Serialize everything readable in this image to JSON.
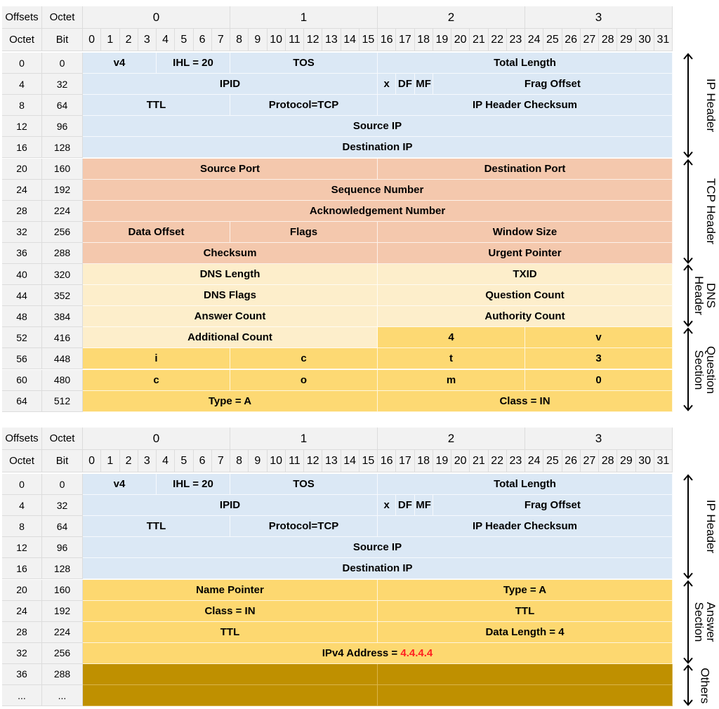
{
  "header": {
    "offsets": "Offsets",
    "octet": "Octet",
    "bit": "Bit",
    "octet_numbers": [
      "0",
      "1",
      "2",
      "3"
    ],
    "bits": [
      "0",
      "1",
      "2",
      "3",
      "4",
      "5",
      "6",
      "7",
      "8",
      "9",
      "10",
      "11",
      "12",
      "13",
      "14",
      "15",
      "16",
      "17",
      "18",
      "19",
      "20",
      "21",
      "22",
      "23",
      "24",
      "25",
      "26",
      "27",
      "28",
      "29",
      "30",
      "31"
    ]
  },
  "query": {
    "rows": [
      {
        "octet": "0",
        "bit": "0"
      },
      {
        "octet": "4",
        "bit": "32"
      },
      {
        "octet": "8",
        "bit": "64"
      },
      {
        "octet": "12",
        "bit": "96"
      },
      {
        "octet": "16",
        "bit": "128"
      },
      {
        "octet": "20",
        "bit": "160"
      },
      {
        "octet": "24",
        "bit": "192"
      },
      {
        "octet": "28",
        "bit": "224"
      },
      {
        "octet": "32",
        "bit": "256"
      },
      {
        "octet": "36",
        "bit": "288"
      },
      {
        "octet": "40",
        "bit": "320"
      },
      {
        "octet": "44",
        "bit": "352"
      },
      {
        "octet": "48",
        "bit": "384"
      },
      {
        "octet": "52",
        "bit": "416"
      },
      {
        "octet": "56",
        "bit": "448"
      },
      {
        "octet": "60",
        "bit": "480"
      },
      {
        "octet": "64",
        "bit": "512"
      }
    ],
    "fields": {
      "v4": "v4",
      "ihl": "IHL = 20",
      "tos": "TOS",
      "total_length": "Total Length",
      "ipid": "IPID",
      "x": "x",
      "df": "DF",
      "mf": "MF",
      "frag_offset": "Frag Offset",
      "ttl": "TTL",
      "protocol": "Protocol=TCP",
      "ip_checksum": "IP Header Checksum",
      "source_ip": "Source IP",
      "destination_ip": "Destination IP",
      "source_port": "Source Port",
      "destination_port": "Destination Port",
      "sequence_number": "Sequence Number",
      "ack_number": "Acknowledgement Number",
      "data_offset": "Data Offset",
      "flags": "Flags",
      "window_size": "Window Size",
      "checksum": "Checksum",
      "urgent_pointer": "Urgent Pointer",
      "dns_length": "DNS Length",
      "txid": "TXID",
      "dns_flags": "DNS Flags",
      "question_count": "Question Count",
      "answer_count": "Answer Count",
      "authority_count": "Authority Count",
      "additional_count": "Additional Count",
      "q1": "4",
      "q2": "v",
      "q3": "i",
      "q4": "c",
      "q5": "t",
      "q6": "3",
      "q7": "c",
      "q8": "o",
      "q9": "m",
      "q10": "0",
      "type": "Type = A",
      "class": "Class = IN"
    },
    "sections": [
      "IP Header",
      "TCP Header",
      "DNS Header",
      "Question Section"
    ]
  },
  "response": {
    "rows": [
      {
        "octet": "0",
        "bit": "0"
      },
      {
        "octet": "4",
        "bit": "32"
      },
      {
        "octet": "8",
        "bit": "64"
      },
      {
        "octet": "12",
        "bit": "96"
      },
      {
        "octet": "16",
        "bit": "128"
      },
      {
        "octet": "20",
        "bit": "160"
      },
      {
        "octet": "24",
        "bit": "192"
      },
      {
        "octet": "28",
        "bit": "224"
      },
      {
        "octet": "32",
        "bit": "256"
      },
      {
        "octet": "36",
        "bit": "288"
      },
      {
        "octet": "...",
        "bit": "..."
      }
    ],
    "fields": {
      "v4": "v4",
      "ihl": "IHL = 20",
      "tos": "TOS",
      "total_length": "Total Length",
      "ipid": "IPID",
      "x": "x",
      "df": "DF",
      "mf": "MF",
      "frag_offset": "Frag Offset",
      "ttl": "TTL",
      "protocol": "Protocol=TCP",
      "ip_checksum": "IP Header Checksum",
      "source_ip": "Source IP",
      "destination_ip": "Destination IP",
      "name_pointer": "Name Pointer",
      "type": "Type = A",
      "class": "Class = IN",
      "ttl_hi": "TTL",
      "ttl_lo": "TTL",
      "data_length": "Data Length = 4",
      "ipv4_label": "IPv4 Address = ",
      "ipv4_value": "4.4.4.4"
    },
    "sections": [
      "IP Header",
      "Answer Section",
      "Others"
    ]
  },
  "colors": {
    "ip": "#dbe8f5",
    "tcp": "#f4c8ad",
    "dns": "#fdeecb",
    "question": "#fdd973",
    "answer": "#fdd870",
    "others": "#bf9000",
    "highlight": "#ff2020"
  }
}
